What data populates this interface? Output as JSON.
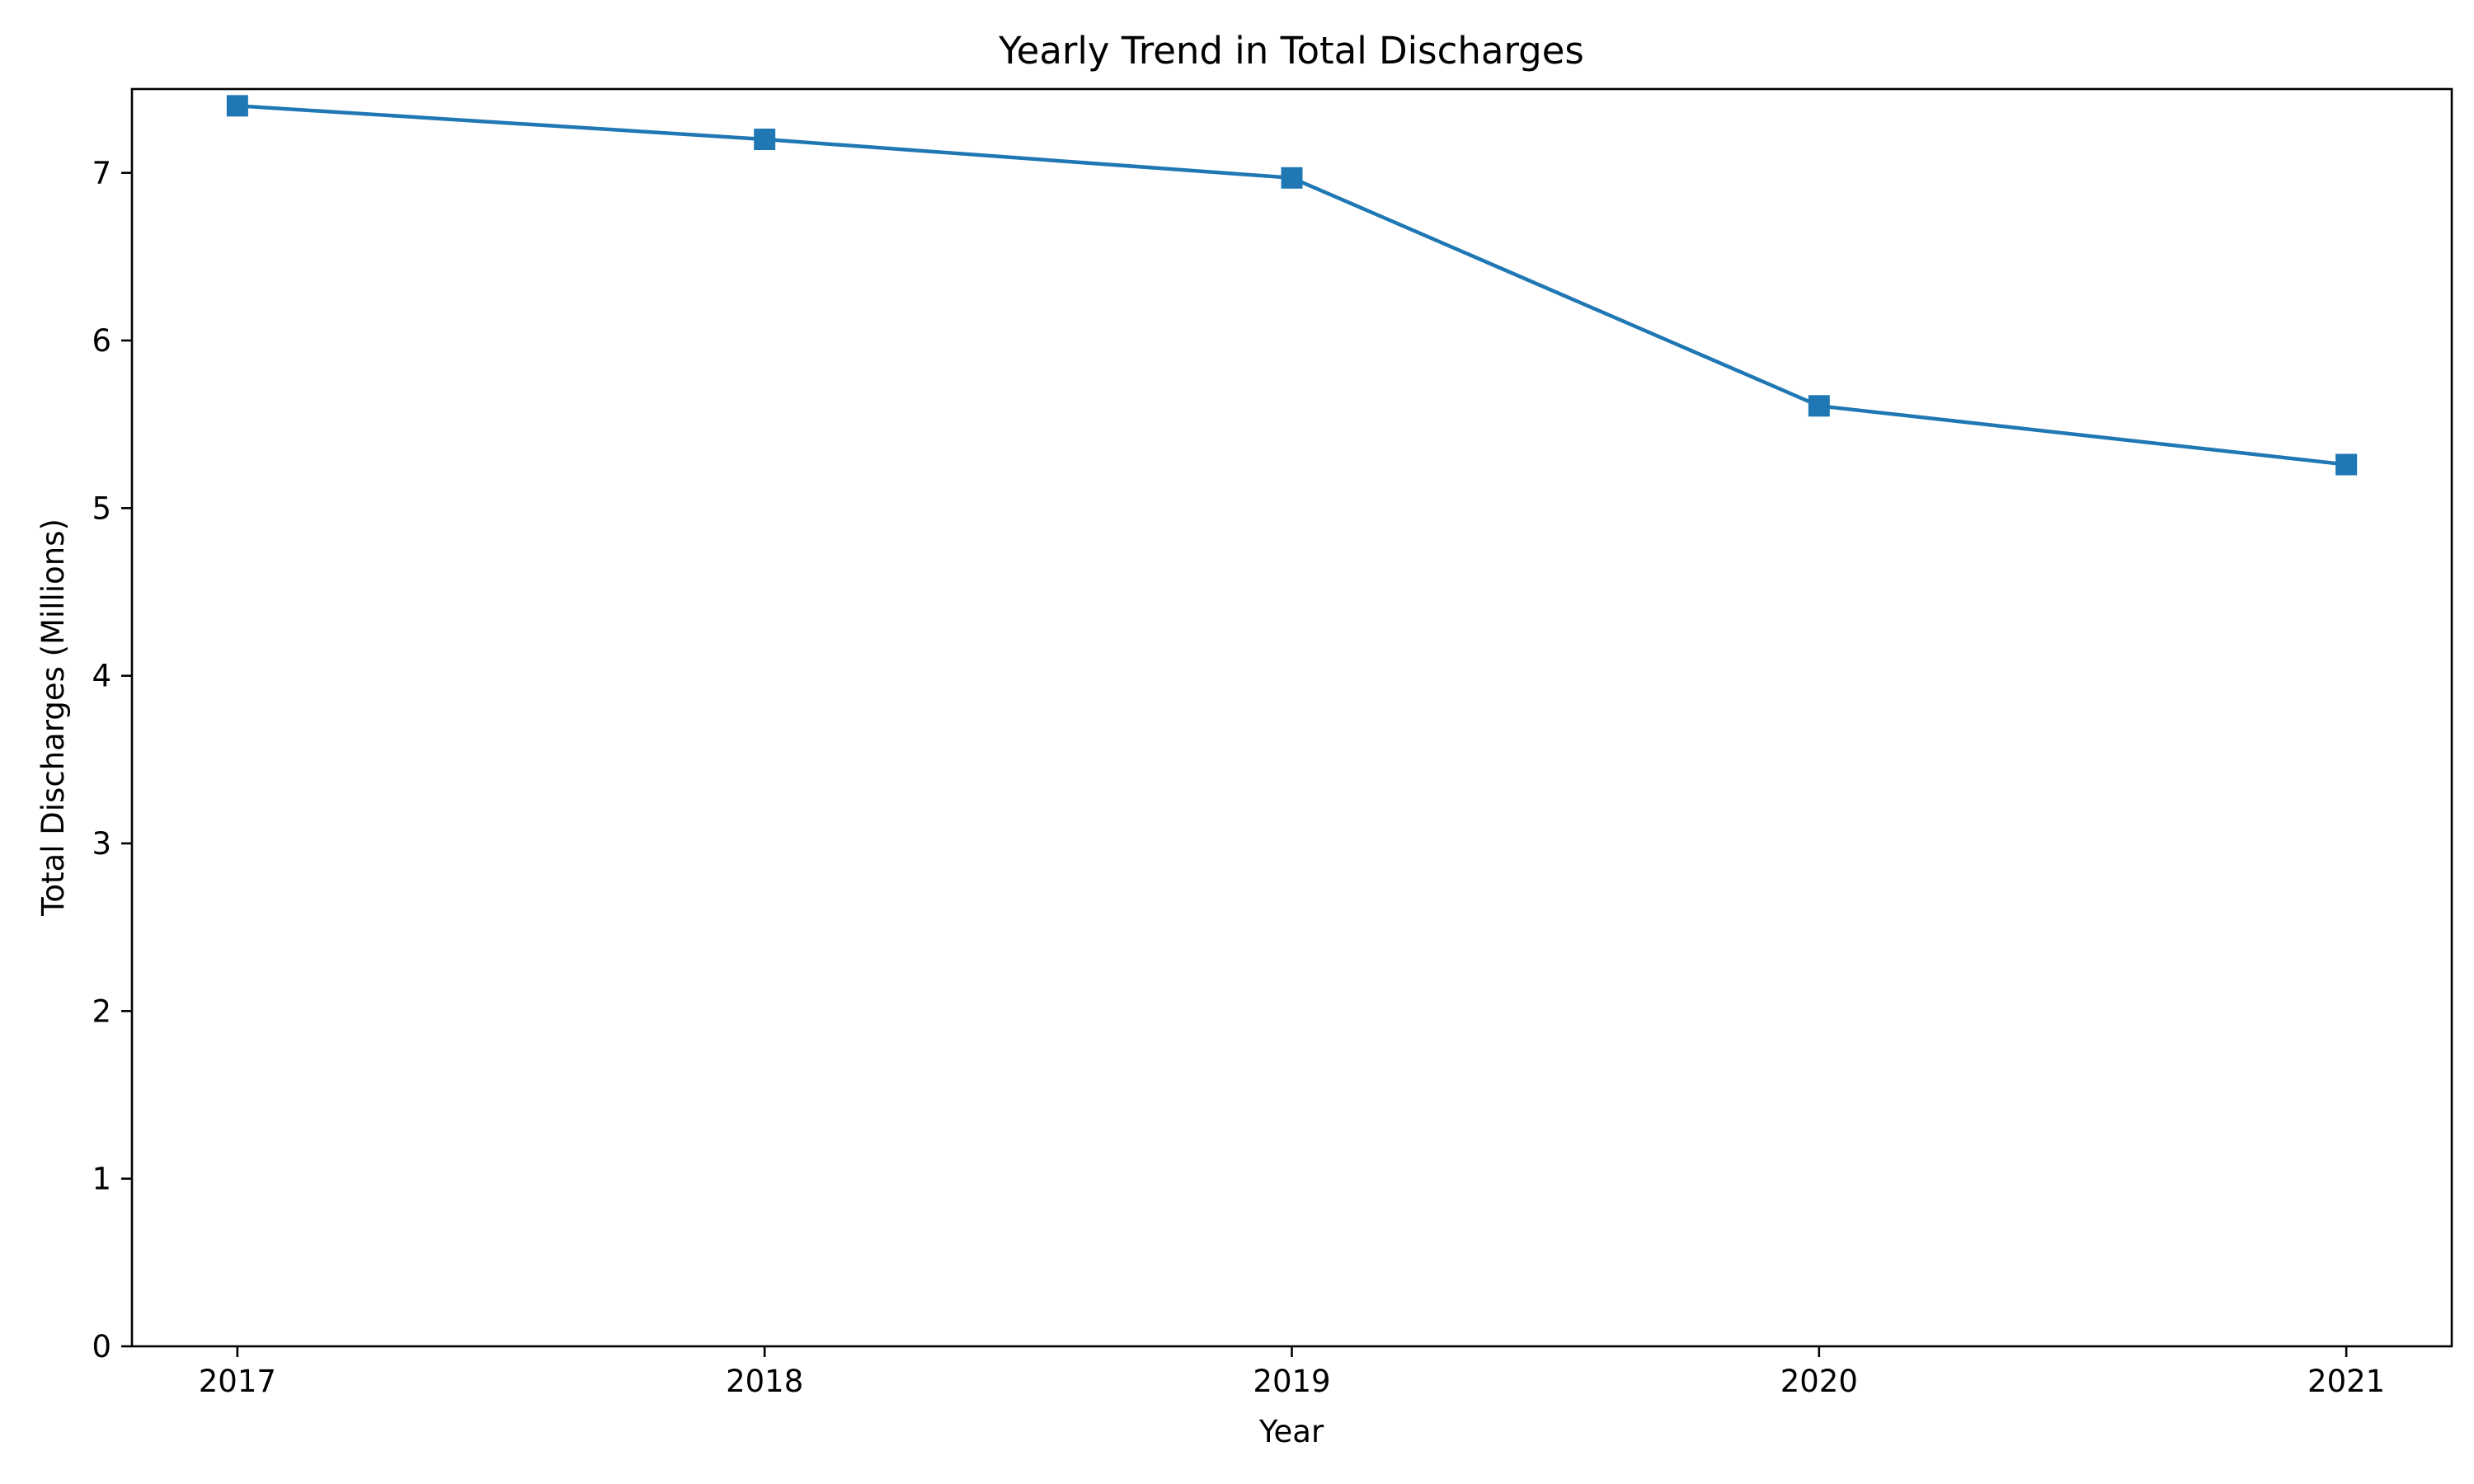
{
  "chart_data": {
    "type": "line",
    "title": "Yearly Trend in Total Discharges",
    "xlabel": "Year",
    "ylabel": "Total Discharges (Millions)",
    "categories": [
      "2017",
      "2018",
      "2019",
      "2020",
      "2021"
    ],
    "series": [
      {
        "values": [
          7.4,
          7.2,
          6.97,
          5.61,
          5.26
        ],
        "marker": "square"
      }
    ],
    "yticks": [
      "0",
      "1",
      "2",
      "3",
      "4",
      "5",
      "6",
      "7"
    ],
    "ylim": [
      0,
      7.5
    ],
    "grid": false,
    "colors": {
      "series": "#1f77b4",
      "axis": "#000000",
      "background": "#ffffff"
    }
  }
}
